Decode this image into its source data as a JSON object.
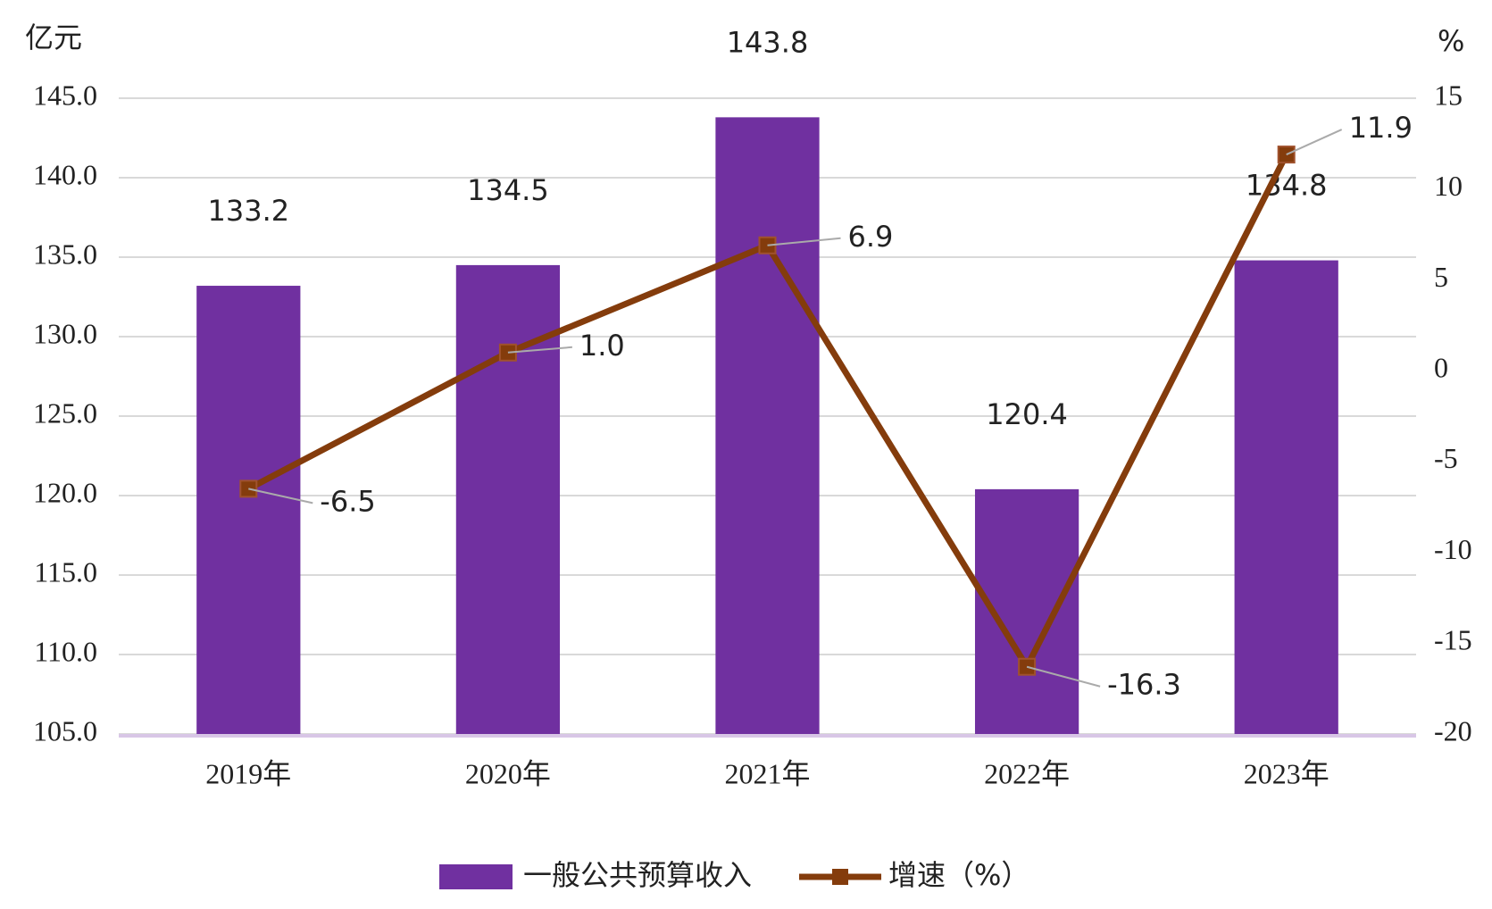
{
  "chart_data": {
    "type": "bar-line",
    "y_unit": "亿元",
    "y2_unit": "%",
    "categories": [
      "2019年",
      "2020年",
      "2021年",
      "2022年",
      "2023年"
    ],
    "series": [
      {
        "name": "一般公共预算收入",
        "type": "bar",
        "color": "#7030a0",
        "values": [
          133.2,
          134.5,
          143.8,
          120.4,
          134.8
        ]
      },
      {
        "name": "增速（%）",
        "type": "line",
        "axis": "y2",
        "color": "#843c0c",
        "values": [
          -6.5,
          1.0,
          6.9,
          -16.3,
          11.9
        ],
        "value_labels": [
          "-6.5",
          "1.0",
          "6.9",
          "-16.3",
          "11.9"
        ]
      }
    ],
    "ylim": [
      105,
      145
    ],
    "yticks": [
      {
        "value": 105,
        "label": "105.0"
      },
      {
        "value": 110,
        "label": "110.0"
      },
      {
        "value": 115,
        "label": "115.0"
      },
      {
        "value": 120,
        "label": "120.0"
      },
      {
        "value": 125,
        "label": "125.0"
      },
      {
        "value": 130,
        "label": "130.0"
      },
      {
        "value": 135,
        "label": "135.0"
      },
      {
        "value": 140,
        "label": "140.0"
      },
      {
        "value": 145,
        "label": "145.0"
      }
    ],
    "y2lim": [
      -20,
      15
    ],
    "y2ticks": [
      -20,
      -15,
      -10,
      -5,
      0,
      5,
      10,
      15
    ],
    "grid": true,
    "legend": "bottom"
  }
}
